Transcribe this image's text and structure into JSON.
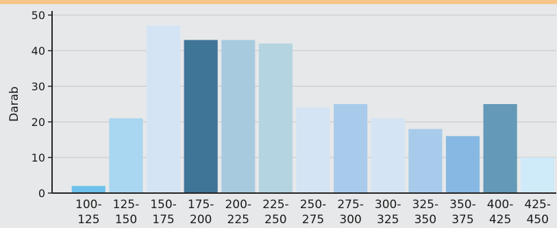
{
  "colors": {
    "accent_strip": "#f7c48a",
    "background": "#e6e8e9",
    "gridline": "#c9ccce",
    "axis": "#222222"
  },
  "chart_data": {
    "type": "bar",
    "categories": [
      [
        "100-",
        "125"
      ],
      [
        "125-",
        "150"
      ],
      [
        "150-",
        "175"
      ],
      [
        "175-",
        "200"
      ],
      [
        "200-",
        "225"
      ],
      [
        "225-",
        "250"
      ],
      [
        "250-",
        "275"
      ],
      [
        "275-",
        "300"
      ],
      [
        "300-",
        "325"
      ],
      [
        "325-",
        "350"
      ],
      [
        "350-",
        "375"
      ],
      [
        "400-",
        "425"
      ],
      [
        "425-",
        "450"
      ]
    ],
    "values": [
      2,
      21,
      47,
      43,
      43,
      42,
      24,
      25,
      21,
      18,
      16,
      25,
      10
    ],
    "bar_colors": [
      "#6ec1ec",
      "#a9d6f0",
      "#d4e4f5",
      "#3f7597",
      "#a8cade",
      "#b4d4e2",
      "#d4e4f5",
      "#a9cbeb",
      "#d4e4f5",
      "#a9cbeb",
      "#86b8e3",
      "#6499b7",
      "#cfeaf8"
    ],
    "ylabel": "Darab",
    "xlabel": "",
    "title": "",
    "ylim": [
      0,
      50
    ],
    "yticks": [
      0,
      10,
      20,
      30,
      40,
      50
    ],
    "grid": true,
    "legend": "none"
  }
}
